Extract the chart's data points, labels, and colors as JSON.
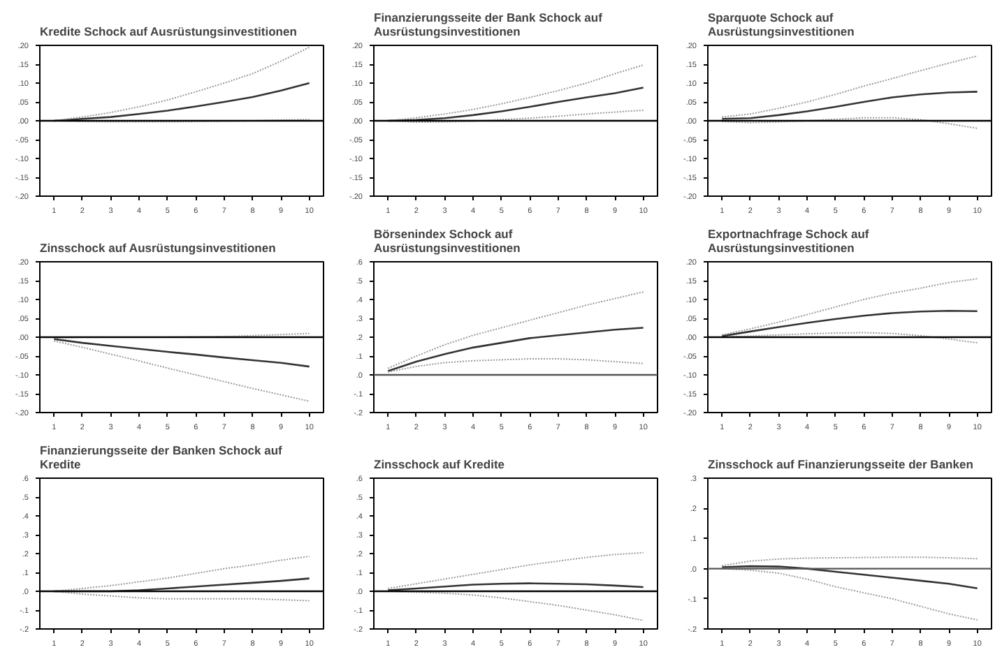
{
  "chart_data": [
    {
      "type": "line",
      "title": "Kredite Schock auf  Ausrüstungsinvestitionen",
      "x": [
        1,
        2,
        3,
        4,
        5,
        6,
        7,
        8,
        9,
        10
      ],
      "xlim": [
        0.5,
        10.5
      ],
      "xticks": [
        1,
        2,
        3,
        4,
        5,
        6,
        7,
        8,
        9,
        10
      ],
      "ylim": [
        -0.2,
        0.2
      ],
      "yticks": [
        {
          "value": 0.2,
          "label": ".20"
        },
        {
          "value": 0.15,
          "label": ".15"
        },
        {
          "value": 0.1,
          "label": ".10"
        },
        {
          "value": 0.05,
          "label": ".05"
        },
        {
          "value": 0,
          "label": ".00"
        },
        {
          "value": -0.05,
          "label": "-.05"
        },
        {
          "value": -0.1,
          "label": "-.10"
        },
        {
          "value": -0.15,
          "label": "-.15"
        },
        {
          "value": -0.2,
          "label": "-.20"
        }
      ],
      "grid": false,
      "ref_lines": [
        {
          "axis": "y",
          "value": 0,
          "color": "#000000"
        }
      ],
      "series": [
        {
          "color": "#333333",
          "line_style": "solid",
          "values": [
            0,
            0.005,
            0.01,
            0.018,
            0.027,
            0.038,
            0.05,
            0.063,
            0.08,
            0.1
          ]
        },
        {
          "color": "#999999",
          "line_style": "dotted",
          "values": [
            0,
            0.01,
            0.022,
            0.037,
            0.055,
            0.077,
            0.1,
            0.125,
            0.158,
            0.195
          ]
        },
        {
          "color": "#999999",
          "line_style": "dotted",
          "values": [
            0,
            -0.002,
            -0.003,
            -0.003,
            -0.003,
            -0.002,
            -0.001,
            0,
            0.002,
            0.003
          ]
        }
      ]
    },
    {
      "type": "line",
      "title": "Finanzierungsseite der Bank Schock  auf Ausrüstungsinvestitionen",
      "x": [
        1,
        2,
        3,
        4,
        5,
        6,
        7,
        8,
        9,
        10
      ],
      "xlim": [
        0.5,
        10.5
      ],
      "xticks": [
        1,
        2,
        3,
        4,
        5,
        6,
        7,
        8,
        9,
        10
      ],
      "ylim": [
        -0.2,
        0.2
      ],
      "yticks": [
        {
          "value": 0.2,
          "label": ".20"
        },
        {
          "value": 0.15,
          "label": ".15"
        },
        {
          "value": 0.1,
          "label": ".10"
        },
        {
          "value": 0.05,
          "label": ".05"
        },
        {
          "value": 0,
          "label": ".00"
        },
        {
          "value": -0.05,
          "label": "-.05"
        },
        {
          "value": -0.1,
          "label": "-.10"
        },
        {
          "value": -0.15,
          "label": "-.15"
        },
        {
          "value": -0.2,
          "label": "-.20"
        }
      ],
      "grid": false,
      "ref_lines": [
        {
          "axis": "y",
          "value": 0,
          "color": "#000000"
        }
      ],
      "series": [
        {
          "color": "#333333",
          "line_style": "solid",
          "values": [
            0,
            0.002,
            0.007,
            0.015,
            0.025,
            0.037,
            0.05,
            0.062,
            0.073,
            0.088
          ]
        },
        {
          "color": "#999999",
          "line_style": "dotted",
          "values": [
            0,
            0.008,
            0.018,
            0.03,
            0.045,
            0.062,
            0.08,
            0.1,
            0.125,
            0.148
          ]
        },
        {
          "color": "#999999",
          "line_style": "dotted",
          "values": [
            0,
            -0.004,
            -0.003,
            -0.001,
            0.003,
            0.007,
            0.012,
            0.018,
            0.023,
            0.028
          ]
        }
      ]
    },
    {
      "type": "line",
      "title": "Sparquote Schock auf Ausrüstungsinvestitionen",
      "x": [
        1,
        2,
        3,
        4,
        5,
        6,
        7,
        8,
        9,
        10
      ],
      "xlim": [
        0.5,
        10.5
      ],
      "xticks": [
        1,
        2,
        3,
        4,
        5,
        6,
        7,
        8,
        9,
        10
      ],
      "ylim": [
        -0.2,
        0.2
      ],
      "yticks": [
        {
          "value": 0.2,
          "label": ".20"
        },
        {
          "value": 0.15,
          "label": ".15"
        },
        {
          "value": 0.1,
          "label": ".10"
        },
        {
          "value": 0.05,
          "label": ".05"
        },
        {
          "value": 0,
          "label": ".00"
        },
        {
          "value": -0.05,
          "label": "-.05"
        },
        {
          "value": -0.1,
          "label": "-.10"
        },
        {
          "value": -0.15,
          "label": "-.15"
        },
        {
          "value": -0.2,
          "label": "-.20"
        }
      ],
      "grid": false,
      "ref_lines": [
        {
          "axis": "y",
          "value": 0,
          "color": "#000000"
        }
      ],
      "series": [
        {
          "color": "#333333",
          "line_style": "solid",
          "values": [
            0.005,
            0.007,
            0.015,
            0.025,
            0.037,
            0.05,
            0.062,
            0.07,
            0.075,
            0.077
          ]
        },
        {
          "color": "#999999",
          "line_style": "dotted",
          "values": [
            0.01,
            0.018,
            0.033,
            0.05,
            0.07,
            0.092,
            0.112,
            0.133,
            0.153,
            0.172
          ]
        },
        {
          "color": "#999999",
          "line_style": "dotted",
          "values": [
            -0.002,
            -0.005,
            -0.003,
            0,
            0.004,
            0.008,
            0.008,
            0.003,
            -0.008,
            -0.02
          ]
        }
      ]
    },
    {
      "type": "line",
      "title": "Zinsschock auf  Ausrüstungsinvestitionen",
      "x": [
        1,
        2,
        3,
        4,
        5,
        6,
        7,
        8,
        9,
        10
      ],
      "xlim": [
        0.5,
        10.5
      ],
      "xticks": [
        1,
        2,
        3,
        4,
        5,
        6,
        7,
        8,
        9,
        10
      ],
      "ylim": [
        -0.2,
        0.2
      ],
      "yticks": [
        {
          "value": 0.2,
          "label": ".20"
        },
        {
          "value": 0.15,
          "label": ".15"
        },
        {
          "value": 0.1,
          "label": ".10"
        },
        {
          "value": 0.05,
          "label": ".05"
        },
        {
          "value": 0,
          "label": ".00"
        },
        {
          "value": -0.05,
          "label": "-.05"
        },
        {
          "value": -0.1,
          "label": "-.10"
        },
        {
          "value": -0.15,
          "label": "-.15"
        },
        {
          "value": -0.2,
          "label": "-.20"
        }
      ],
      "grid": false,
      "ref_lines": [
        {
          "axis": "y",
          "value": 0,
          "color": "#000000"
        }
      ],
      "series": [
        {
          "color": "#333333",
          "line_style": "solid",
          "values": [
            -0.005,
            -0.015,
            -0.023,
            -0.031,
            -0.039,
            -0.046,
            -0.054,
            -0.061,
            -0.068,
            -0.078
          ]
        },
        {
          "color": "#999999",
          "line_style": "dotted",
          "values": [
            -0.002,
            0,
            0,
            0,
            0,
            0.001,
            0.002,
            0.004,
            0.007,
            0.01
          ]
        },
        {
          "color": "#999999",
          "line_style": "dotted",
          "values": [
            -0.01,
            -0.027,
            -0.045,
            -0.063,
            -0.082,
            -0.1,
            -0.118,
            -0.136,
            -0.153,
            -0.17
          ]
        }
      ]
    },
    {
      "type": "line",
      "title": "Börsenindex Schock auf Ausrüstungsinvestitionen",
      "x": [
        1,
        2,
        3,
        4,
        5,
        6,
        7,
        8,
        9,
        10
      ],
      "xlim": [
        0.5,
        10.5
      ],
      "xticks": [
        1,
        2,
        3,
        4,
        5,
        6,
        7,
        8,
        9,
        10
      ],
      "ylim": [
        -0.2,
        0.6
      ],
      "yticks": [
        {
          "value": 0.6,
          "label": ".6"
        },
        {
          "value": 0.5,
          "label": ".5"
        },
        {
          "value": 0.4,
          "label": ".4"
        },
        {
          "value": 0.3,
          "label": ".3"
        },
        {
          "value": 0.2,
          "label": ".2"
        },
        {
          "value": 0.1,
          "label": ".1"
        },
        {
          "value": 0,
          "label": ".0"
        },
        {
          "value": -0.1,
          "label": "-.1"
        },
        {
          "value": -0.2,
          "label": "-.2"
        }
      ],
      "grid": false,
      "ref_lines": [
        {
          "axis": "y",
          "value": 0,
          "color": "#555555"
        }
      ],
      "series": [
        {
          "color": "#333333",
          "line_style": "solid",
          "values": [
            0.02,
            0.07,
            0.11,
            0.145,
            0.17,
            0.195,
            0.21,
            0.225,
            0.24,
            0.25
          ]
        },
        {
          "color": "#999999",
          "line_style": "dotted",
          "values": [
            0.035,
            0.1,
            0.16,
            0.21,
            0.25,
            0.29,
            0.33,
            0.37,
            0.405,
            0.44
          ]
        },
        {
          "color": "#999999",
          "line_style": "dotted",
          "values": [
            0.015,
            0.045,
            0.065,
            0.075,
            0.08,
            0.085,
            0.085,
            0.08,
            0.07,
            0.06
          ]
        }
      ]
    },
    {
      "type": "line",
      "title": "Exportnachfrage Schock auf Ausrüstungsinvestitionen",
      "x": [
        1,
        2,
        3,
        4,
        5,
        6,
        7,
        8,
        9,
        10
      ],
      "xlim": [
        0.5,
        10.5
      ],
      "xticks": [
        1,
        2,
        3,
        4,
        5,
        6,
        7,
        8,
        9,
        10
      ],
      "ylim": [
        -0.2,
        0.2
      ],
      "yticks": [
        {
          "value": 0.2,
          "label": ".20"
        },
        {
          "value": 0.15,
          "label": ".15"
        },
        {
          "value": 0.1,
          "label": ".10"
        },
        {
          "value": 0.05,
          "label": ".05"
        },
        {
          "value": 0,
          "label": ".00"
        },
        {
          "value": -0.05,
          "label": "-.05"
        },
        {
          "value": -0.1,
          "label": "-.10"
        },
        {
          "value": -0.15,
          "label": "-.15"
        },
        {
          "value": -0.2,
          "label": "-.20"
        }
      ],
      "grid": false,
      "ref_lines": [
        {
          "axis": "y",
          "value": 0,
          "color": "#000000"
        }
      ],
      "series": [
        {
          "color": "#333333",
          "line_style": "solid",
          "values": [
            0.003,
            0.015,
            0.027,
            0.038,
            0.048,
            0.057,
            0.064,
            0.068,
            0.07,
            0.069
          ]
        },
        {
          "color": "#999999",
          "line_style": "dotted",
          "values": [
            0.006,
            0.022,
            0.04,
            0.06,
            0.08,
            0.1,
            0.117,
            0.13,
            0.145,
            0.155
          ]
        },
        {
          "color": "#999999",
          "line_style": "dotted",
          "values": [
            0,
            0.003,
            0.006,
            0.009,
            0.011,
            0.012,
            0.01,
            0.004,
            -0.005,
            -0.015
          ]
        }
      ]
    },
    {
      "type": "line",
      "title": "Finanzierungsseite der Banken  Schock auf Kredite",
      "x": [
        1,
        2,
        3,
        4,
        5,
        6,
        7,
        8,
        9,
        10
      ],
      "xlim": [
        0.5,
        10.5
      ],
      "xticks": [
        1,
        2,
        3,
        4,
        5,
        6,
        7,
        8,
        9,
        10
      ],
      "ylim": [
        -0.2,
        0.6
      ],
      "yticks": [
        {
          "value": 0.6,
          "label": ".6"
        },
        {
          "value": 0.5,
          "label": ".5"
        },
        {
          "value": 0.4,
          "label": ".4"
        },
        {
          "value": 0.3,
          "label": ".3"
        },
        {
          "value": 0.2,
          "label": ".2"
        },
        {
          "value": 0.1,
          "label": ".1"
        },
        {
          "value": 0,
          "label": ".0"
        },
        {
          "value": -0.1,
          "label": "-.1"
        },
        {
          "value": -0.2,
          "label": "-.2"
        }
      ],
      "grid": false,
      "ref_lines": [
        {
          "axis": "y",
          "value": 0,
          "color": "#000000"
        }
      ],
      "series": [
        {
          "color": "#333333",
          "line_style": "solid",
          "values": [
            0,
            0,
            0,
            0.005,
            0.015,
            0.025,
            0.035,
            0.045,
            0.055,
            0.068
          ]
        },
        {
          "color": "#999999",
          "line_style": "dotted",
          "values": [
            0,
            0.015,
            0.03,
            0.05,
            0.07,
            0.095,
            0.12,
            0.14,
            0.165,
            0.185
          ]
        },
        {
          "color": "#999999",
          "line_style": "dotted",
          "values": [
            0,
            -0.015,
            -0.025,
            -0.035,
            -0.04,
            -0.04,
            -0.04,
            -0.04,
            -0.045,
            -0.05
          ]
        }
      ]
    },
    {
      "type": "line",
      "title": "Zinsschock auf  Kredite",
      "x": [
        1,
        2,
        3,
        4,
        5,
        6,
        7,
        8,
        9,
        10
      ],
      "xlim": [
        0.5,
        10.5
      ],
      "xticks": [
        1,
        2,
        3,
        4,
        5,
        6,
        7,
        8,
        9,
        10
      ],
      "ylim": [
        -0.2,
        0.6
      ],
      "yticks": [
        {
          "value": 0.6,
          "label": ".6"
        },
        {
          "value": 0.5,
          "label": ".5"
        },
        {
          "value": 0.4,
          "label": ".4"
        },
        {
          "value": 0.3,
          "label": ".3"
        },
        {
          "value": 0.2,
          "label": ".2"
        },
        {
          "value": 0.1,
          "label": ".1"
        },
        {
          "value": 0,
          "label": ".0"
        },
        {
          "value": -0.1,
          "label": "-.1"
        },
        {
          "value": -0.2,
          "label": "-.2"
        }
      ],
      "grid": false,
      "ref_lines": [
        {
          "axis": "y",
          "value": 0,
          "color": "#000000"
        }
      ],
      "series": [
        {
          "color": "#333333",
          "line_style": "solid",
          "values": [
            0.005,
            0.015,
            0.025,
            0.035,
            0.04,
            0.042,
            0.04,
            0.037,
            0.03,
            0.022
          ]
        },
        {
          "color": "#999999",
          "line_style": "dotted",
          "values": [
            0.015,
            0.04,
            0.065,
            0.09,
            0.115,
            0.14,
            0.16,
            0.18,
            0.195,
            0.205
          ]
        },
        {
          "color": "#999999",
          "line_style": "dotted",
          "values": [
            0,
            -0.005,
            -0.01,
            -0.02,
            -0.035,
            -0.055,
            -0.075,
            -0.1,
            -0.125,
            -0.155
          ]
        }
      ]
    },
    {
      "type": "line",
      "title": "Zinsschock auf Finanzierungsseite der Banken",
      "x": [
        1,
        2,
        3,
        4,
        5,
        6,
        7,
        8,
        9,
        10
      ],
      "xlim": [
        0.5,
        10.5
      ],
      "xticks": [
        1,
        2,
        3,
        4,
        5,
        6,
        7,
        8,
        9,
        10
      ],
      "ylim": [
        -0.2,
        0.3
      ],
      "yticks": [
        {
          "value": 0.3,
          "label": ".3"
        },
        {
          "value": 0.2,
          "label": ".2"
        },
        {
          "value": 0.1,
          "label": ".1"
        },
        {
          "value": 0,
          "label": ".0"
        },
        {
          "value": -0.1,
          "label": "-.1"
        },
        {
          "value": -0.2,
          "label": "-.2"
        }
      ],
      "grid": false,
      "ref_lines": [
        {
          "axis": "y",
          "value": 0,
          "color": "#555555"
        }
      ],
      "series": [
        {
          "color": "#333333",
          "line_style": "solid",
          "values": [
            0.005,
            0.008,
            0.007,
            0,
            -0.01,
            -0.02,
            -0.03,
            -0.04,
            -0.05,
            -0.065
          ]
        },
        {
          "color": "#999999",
          "line_style": "dotted",
          "values": [
            0.01,
            0.025,
            0.032,
            0.035,
            0.036,
            0.037,
            0.038,
            0.038,
            0.036,
            0.033
          ]
        },
        {
          "color": "#999999",
          "line_style": "dotted",
          "values": [
            0,
            -0.005,
            -0.015,
            -0.035,
            -0.06,
            -0.08,
            -0.1,
            -0.125,
            -0.15,
            -0.17
          ]
        }
      ]
    }
  ]
}
